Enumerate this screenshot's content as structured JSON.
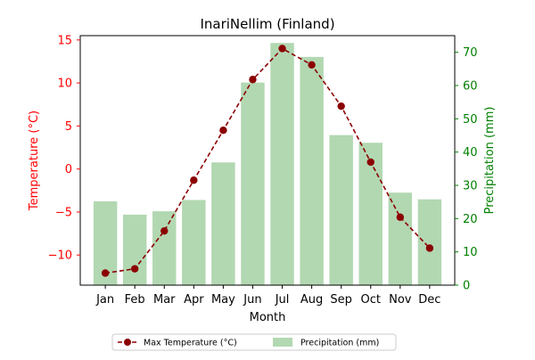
{
  "chart_data": {
    "type": "bar",
    "title": "InariNellim (Finland)",
    "xlabel": "Month",
    "categories": [
      "Jan",
      "Feb",
      "Mar",
      "Apr",
      "May",
      "Jun",
      "Jul",
      "Aug",
      "Sep",
      "Oct",
      "Nov",
      "Dec"
    ],
    "series": [
      {
        "name": "Max Temperature (°C)",
        "type": "line",
        "axis": "left",
        "color": "#8b0000",
        "values": [
          -12.1,
          -11.6,
          -7.2,
          -1.3,
          4.5,
          10.4,
          14.0,
          12.1,
          7.3,
          0.8,
          -5.6,
          -9.2
        ]
      },
      {
        "name": "Precipitation (mm)",
        "type": "bar",
        "axis": "right",
        "color": "#b2d8b2",
        "values": [
          25.2,
          21.2,
          22.2,
          25.6,
          36.9,
          60.9,
          72.8,
          68.6,
          45.1,
          42.8,
          27.8,
          25.8
        ]
      }
    ],
    "y_left": {
      "label": "Temperature (°C)",
      "ylim": [
        -13.5,
        15.5
      ],
      "ticks": [
        -10,
        -5,
        0,
        5,
        10,
        15
      ],
      "color": "#ff0000"
    },
    "y_right": {
      "label": "Precipitation (mm)",
      "ylim": [
        0,
        75
      ],
      "ticks": [
        0,
        10,
        20,
        30,
        40,
        50,
        60,
        70
      ],
      "color": "#008000"
    },
    "grid": false,
    "legend_placement": "bottom-center"
  }
}
